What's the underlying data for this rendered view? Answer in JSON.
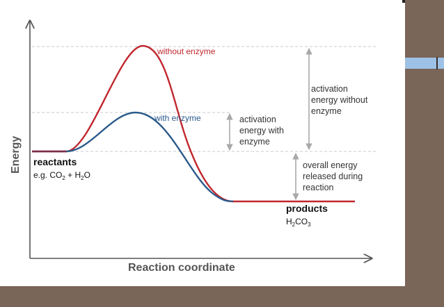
{
  "diagram": {
    "axes": {
      "y_label": "Energy",
      "x_label": "Reaction coordinate"
    },
    "curves": {
      "without_enzyme": {
        "label": "without enzyme",
        "color": "#c0272d"
      },
      "with_enzyme": {
        "label": "with enzyme",
        "color": "#2b5a8a"
      }
    },
    "reactants": {
      "title": "reactants",
      "formula": {
        "prefix": "e.g. CO",
        "sub1": "2",
        "middle": " + H",
        "sub2": "2",
        "suffix": "O"
      }
    },
    "products": {
      "title": "products",
      "formula": {
        "a": "H",
        "sub1": "2",
        "b": "CO",
        "sub2": "3"
      }
    },
    "annotations": {
      "activation_with_enzyme": [
        "activation",
        "energy with",
        "enzyme"
      ],
      "activation_without_enzyme": [
        "activation",
        "energy without",
        "enzyme"
      ],
      "overall_energy": [
        "overall energy",
        "released during",
        "reaction"
      ]
    },
    "colors": {
      "axis": "#555555",
      "guide": "#bfbfbf",
      "arrow": "#a8a8a8",
      "text": "#333333",
      "background_frame": "#7a6559",
      "accent_bar": "#9ec2e6"
    }
  }
}
